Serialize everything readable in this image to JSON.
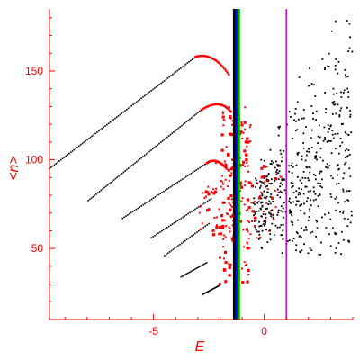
{
  "colors": {
    "axis": "#ff0000",
    "series_black": "#000000",
    "series_red": "#ff0000",
    "line_black": "#000000",
    "line_blue": "#0000ff",
    "line_green": "#00aa00",
    "line_magenta": "#cc00cc"
  },
  "chart_data": {
    "type": "scatter",
    "title": "",
    "xlabel": "E",
    "ylabel": "<n>",
    "xlim": [
      -9.7,
      4.0
    ],
    "ylim": [
      10,
      185
    ],
    "grid": false,
    "x_ticks": [
      -5,
      0
    ],
    "x_tick_labels": [
      "-5",
      "0"
    ],
    "y_ticks": [
      50,
      100,
      150
    ],
    "y_tick_labels": [
      "50",
      "100",
      "150"
    ],
    "vertical_lines": [
      {
        "x": -1.35,
        "color": "black"
      },
      {
        "x": -1.25,
        "color": "blue"
      },
      {
        "x": -1.15,
        "color": "green"
      },
      {
        "x": 1.0,
        "color": "magenta"
      }
    ],
    "series": [
      {
        "color": "black",
        "segments": [
          {
            "x_start": -9.7,
            "y_start": 95,
            "x_end": -3.1,
            "y_end": 158
          },
          {
            "x_start": -7.95,
            "y_start": 77,
            "x_end": -2.85,
            "y_end": 128
          },
          {
            "x_start": -6.4,
            "y_start": 67,
            "x_end": -2.6,
            "y_end": 98
          },
          {
            "x_start": -5.1,
            "y_start": 56,
            "x_end": -2.4,
            "y_end": 78
          },
          {
            "x_start": -4.5,
            "y_start": 46,
            "x_end": -2.5,
            "y_end": 64
          },
          {
            "x_start": -3.75,
            "y_start": 34,
            "x_end": -2.6,
            "y_end": 42
          },
          {
            "x_start": -2.8,
            "y_start": 24,
            "x_end": -2.05,
            "y_end": 29
          }
        ],
        "cloud": {
          "x_range": [
            -0.5,
            4.0
          ],
          "y_range": [
            45,
            182
          ]
        }
      },
      {
        "color": "red",
        "arcs": [
          {
            "x": [
              -3.1,
              -2.3,
              -1.6
            ],
            "y": [
              158,
              161,
              148
            ]
          },
          {
            "x": [
              -2.85,
              -2.0,
              -1.5
            ],
            "y": [
              128,
              135,
              127
            ]
          },
          {
            "x": [
              -2.6,
              -2.2,
              -1.7
            ],
            "y": [
              98,
              102,
              95
            ]
          }
        ],
        "cluster": {
          "x_range": [
            -3.0,
            0.8
          ],
          "y_range": [
            20,
            140
          ]
        }
      }
    ]
  }
}
